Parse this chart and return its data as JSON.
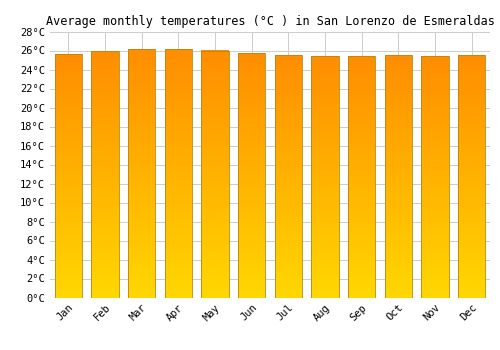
{
  "title": "Average monthly temperatures (°C ) in San Lorenzo de Esmeraldas",
  "months": [
    "Jan",
    "Feb",
    "Mar",
    "Apr",
    "May",
    "Jun",
    "Jul",
    "Aug",
    "Sep",
    "Oct",
    "Nov",
    "Dec"
  ],
  "temperatures": [
    25.6,
    25.9,
    26.2,
    26.2,
    26.0,
    25.7,
    25.5,
    25.4,
    25.4,
    25.5,
    25.4,
    25.5
  ],
  "ylim": [
    0,
    28
  ],
  "yticks": [
    0,
    2,
    4,
    6,
    8,
    10,
    12,
    14,
    16,
    18,
    20,
    22,
    24,
    26,
    28
  ],
  "ytick_labels": [
    "0°C",
    "2°C",
    "4°C",
    "6°C",
    "8°C",
    "10°C",
    "12°C",
    "14°C",
    "16°C",
    "18°C",
    "20°C",
    "22°C",
    "24°C",
    "26°C",
    "28°C"
  ],
  "bar_color_top": "#FF8C00",
  "bar_color_bottom": "#FFD700",
  "bar_edge_color": "#B8860B",
  "background_color": "#ffffff",
  "plot_bg_color": "#ffffff",
  "grid_color": "#cccccc",
  "title_fontsize": 8.5,
  "tick_fontsize": 7.5,
  "font_family": "monospace"
}
